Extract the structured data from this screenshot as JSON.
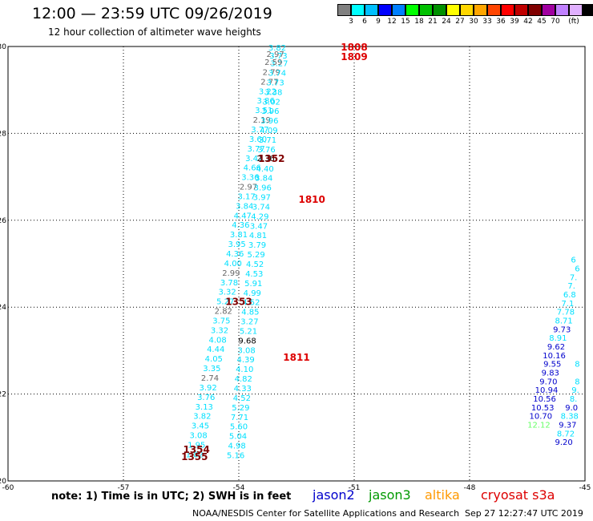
{
  "header": {
    "title": "12:00  —  23:59 UTC 09/26/2019",
    "subtitle": "12 hour collection of altimeter wave heights"
  },
  "colorbar": {
    "colors": [
      "#808080",
      "#00ffff",
      "#00bfff",
      "#0000ff",
      "#007fff",
      "#00ff00",
      "#00c000",
      "#009000",
      "#ffff00",
      "#ffd700",
      "#ffa500",
      "#ff4500",
      "#ff0000",
      "#c00000",
      "#800000",
      "#a000a0",
      "#c080ff",
      "#e0b0ff",
      "#000000"
    ],
    "labels": [
      "3",
      "6",
      "9",
      "12",
      "15",
      "18",
      "21",
      "24",
      "27",
      "30",
      "33",
      "36",
      "39",
      "42",
      "45",
      "70",
      "(ft)"
    ]
  },
  "chart_data": {
    "type": "scatter",
    "xlim": [
      -60,
      -45
    ],
    "ylim": [
      20,
      30
    ],
    "x_ticks": [
      "-60",
      "-57",
      "-54",
      "-51",
      "-48",
      "-45"
    ],
    "y_ticks": [
      "20",
      "22",
      "24",
      "26",
      "28",
      "30"
    ],
    "points": [
      {
        "lon": -53.0,
        "lat": 29.98,
        "t": "3.82",
        "c": "#00e0ff"
      },
      {
        "lon": -53.05,
        "lat": 29.83,
        "t": "2.97",
        "c": "#666666"
      },
      {
        "lon": -52.97,
        "lat": 29.8,
        "t": "3.73",
        "c": "#00e0ff"
      },
      {
        "lon": -52.95,
        "lat": 29.62,
        "t": "3.27",
        "c": "#00e0ff"
      },
      {
        "lon": -53.1,
        "lat": 29.65,
        "t": "2.59",
        "c": "#666666"
      },
      {
        "lon": -53.15,
        "lat": 29.42,
        "t": "2.79",
        "c": "#666666"
      },
      {
        "lon": -53.0,
        "lat": 29.4,
        "t": "3.74",
        "c": "#00e0ff"
      },
      {
        "lon": -53.2,
        "lat": 29.2,
        "t": "2.77",
        "c": "#666666"
      },
      {
        "lon": -53.05,
        "lat": 29.18,
        "t": "3.73",
        "c": "#00e0ff"
      },
      {
        "lon": -53.25,
        "lat": 28.98,
        "t": "3.22",
        "c": "#00e0ff"
      },
      {
        "lon": -53.1,
        "lat": 28.96,
        "t": "3.38",
        "c": "#00e0ff"
      },
      {
        "lon": -53.3,
        "lat": 28.76,
        "t": "3.86",
        "c": "#00e0ff"
      },
      {
        "lon": -53.15,
        "lat": 28.74,
        "t": "3.02",
        "c": "#00e0ff"
      },
      {
        "lon": -53.35,
        "lat": 28.54,
        "t": "3.51",
        "c": "#00e0ff"
      },
      {
        "lon": -53.18,
        "lat": 28.52,
        "t": "3.96",
        "c": "#00e0ff"
      },
      {
        "lon": -53.4,
        "lat": 28.32,
        "t": "2.19",
        "c": "#666666"
      },
      {
        "lon": -53.2,
        "lat": 28.3,
        "t": "3.96",
        "c": "#00e0ff"
      },
      {
        "lon": -53.45,
        "lat": 28.1,
        "t": "3.77",
        "c": "#00e0ff"
      },
      {
        "lon": -53.22,
        "lat": 28.08,
        "t": "4.09",
        "c": "#00e0ff"
      },
      {
        "lon": -53.5,
        "lat": 27.88,
        "t": "3.60",
        "c": "#00e0ff"
      },
      {
        "lon": -53.25,
        "lat": 27.86,
        "t": "3.71",
        "c": "#00e0ff"
      },
      {
        "lon": -53.55,
        "lat": 27.66,
        "t": "3.77",
        "c": "#00e0ff"
      },
      {
        "lon": -53.28,
        "lat": 27.64,
        "t": "3.76",
        "c": "#00e0ff"
      },
      {
        "lon": -53.6,
        "lat": 27.44,
        "t": "3.47",
        "c": "#00e0ff"
      },
      {
        "lon": -53.3,
        "lat": 27.44,
        "t": "2.36",
        "c": "#000000"
      },
      {
        "lon": -53.65,
        "lat": 27.22,
        "t": "4.66",
        "c": "#00e0ff"
      },
      {
        "lon": -53.32,
        "lat": 27.2,
        "t": "4.40",
        "c": "#00e0ff"
      },
      {
        "lon": -53.7,
        "lat": 27.0,
        "t": "3.36",
        "c": "#00e0ff"
      },
      {
        "lon": -53.35,
        "lat": 26.98,
        "t": "3.84",
        "c": "#00e0ff"
      },
      {
        "lon": -53.75,
        "lat": 26.78,
        "t": "2.97",
        "c": "#666666"
      },
      {
        "lon": -53.38,
        "lat": 26.76,
        "t": "3.96",
        "c": "#00e0ff"
      },
      {
        "lon": -53.8,
        "lat": 26.56,
        "t": "3.17",
        "c": "#00e0ff"
      },
      {
        "lon": -53.4,
        "lat": 26.54,
        "t": "3.97",
        "c": "#00e0ff"
      },
      {
        "lon": -53.85,
        "lat": 26.34,
        "t": "3.84",
        "c": "#00e0ff"
      },
      {
        "lon": -53.42,
        "lat": 26.32,
        "t": "3.74",
        "c": "#00e0ff"
      },
      {
        "lon": -53.9,
        "lat": 26.12,
        "t": "4.47",
        "c": "#00e0ff"
      },
      {
        "lon": -53.45,
        "lat": 26.1,
        "t": "4.29",
        "c": "#00e0ff"
      },
      {
        "lon": -53.95,
        "lat": 25.9,
        "t": "4.36",
        "c": "#00e0ff"
      },
      {
        "lon": -53.48,
        "lat": 25.88,
        "t": "3.47",
        "c": "#00e0ff"
      },
      {
        "lon": -54.0,
        "lat": 25.68,
        "t": "3.81",
        "c": "#00e0ff"
      },
      {
        "lon": -53.5,
        "lat": 25.66,
        "t": "4.81",
        "c": "#00e0ff"
      },
      {
        "lon": -54.05,
        "lat": 25.46,
        "t": "3.95",
        "c": "#00e0ff"
      },
      {
        "lon": -53.52,
        "lat": 25.44,
        "t": "3.79",
        "c": "#00e0ff"
      },
      {
        "lon": -54.1,
        "lat": 25.24,
        "t": "4.36",
        "c": "#00e0ff"
      },
      {
        "lon": -53.55,
        "lat": 25.22,
        "t": "5.29",
        "c": "#00e0ff"
      },
      {
        "lon": -54.15,
        "lat": 25.02,
        "t": "4.00",
        "c": "#00e0ff"
      },
      {
        "lon": -53.58,
        "lat": 25.0,
        "t": "4.52",
        "c": "#00e0ff"
      },
      {
        "lon": -54.2,
        "lat": 24.8,
        "t": "2.99",
        "c": "#666666"
      },
      {
        "lon": -53.6,
        "lat": 24.78,
        "t": "4.53",
        "c": "#00e0ff"
      },
      {
        "lon": -54.25,
        "lat": 24.58,
        "t": "3.78",
        "c": "#00e0ff"
      },
      {
        "lon": -53.62,
        "lat": 24.56,
        "t": "5.91",
        "c": "#00e0ff"
      },
      {
        "lon": -54.3,
        "lat": 24.36,
        "t": "3.32",
        "c": "#00e0ff"
      },
      {
        "lon": -53.65,
        "lat": 24.34,
        "t": "4.99",
        "c": "#00e0ff"
      },
      {
        "lon": -54.35,
        "lat": 24.14,
        "t": "5.27",
        "c": "#00e0ff"
      },
      {
        "lon": -53.68,
        "lat": 24.12,
        "t": "4.52",
        "c": "#00e0ff"
      },
      {
        "lon": -54.4,
        "lat": 23.92,
        "t": "2.82",
        "c": "#666666"
      },
      {
        "lon": -53.7,
        "lat": 23.9,
        "t": "4.85",
        "c": "#00e0ff"
      },
      {
        "lon": -54.45,
        "lat": 23.7,
        "t": "3.75",
        "c": "#00e0ff"
      },
      {
        "lon": -53.72,
        "lat": 23.68,
        "t": "3.27",
        "c": "#00e0ff"
      },
      {
        "lon": -54.5,
        "lat": 23.48,
        "t": "3.32",
        "c": "#00e0ff"
      },
      {
        "lon": -53.75,
        "lat": 23.46,
        "t": "5.21",
        "c": "#00e0ff"
      },
      {
        "lon": -53.78,
        "lat": 23.24,
        "t": "9.68",
        "c": "#000000"
      },
      {
        "lon": -54.55,
        "lat": 23.26,
        "t": "4.08",
        "c": "#00e0ff"
      },
      {
        "lon": -53.8,
        "lat": 23.02,
        "t": "3.08",
        "c": "#00e0ff"
      },
      {
        "lon": -54.6,
        "lat": 23.04,
        "t": "4.44",
        "c": "#00e0ff"
      },
      {
        "lon": -53.82,
        "lat": 22.8,
        "t": "4.39",
        "c": "#00e0ff"
      },
      {
        "lon": -54.65,
        "lat": 22.82,
        "t": "4.05",
        "c": "#00e0ff"
      },
      {
        "lon": -53.85,
        "lat": 22.58,
        "t": "4.10",
        "c": "#00e0ff"
      },
      {
        "lon": -54.7,
        "lat": 22.6,
        "t": "3.35",
        "c": "#00e0ff"
      },
      {
        "lon": -53.88,
        "lat": 22.36,
        "t": "4.82",
        "c": "#00e0ff"
      },
      {
        "lon": -54.75,
        "lat": 22.38,
        "t": "2.74",
        "c": "#666666"
      },
      {
        "lon": -53.9,
        "lat": 22.14,
        "t": "4.33",
        "c": "#00e0ff"
      },
      {
        "lon": -54.8,
        "lat": 22.16,
        "t": "3.92",
        "c": "#00e0ff"
      },
      {
        "lon": -53.92,
        "lat": 21.92,
        "t": "4.52",
        "c": "#00e0ff"
      },
      {
        "lon": -54.85,
        "lat": 21.94,
        "t": "3.76",
        "c": "#00e0ff"
      },
      {
        "lon": -53.95,
        "lat": 21.7,
        "t": "5.29",
        "c": "#00e0ff"
      },
      {
        "lon": -54.9,
        "lat": 21.72,
        "t": "3.13",
        "c": "#00e0ff"
      },
      {
        "lon": -53.98,
        "lat": 21.48,
        "t": "7.71",
        "c": "#00e0ff"
      },
      {
        "lon": -54.95,
        "lat": 21.5,
        "t": "3.82",
        "c": "#00e0ff"
      },
      {
        "lon": -54.0,
        "lat": 21.26,
        "t": "5.60",
        "c": "#00e0ff"
      },
      {
        "lon": -55.0,
        "lat": 21.28,
        "t": "3.45",
        "c": "#00e0ff"
      },
      {
        "lon": -54.02,
        "lat": 21.04,
        "t": "5.04",
        "c": "#00e0ff"
      },
      {
        "lon": -55.05,
        "lat": 21.06,
        "t": "3.08",
        "c": "#00e0ff"
      },
      {
        "lon": -54.05,
        "lat": 20.82,
        "t": "4.98",
        "c": "#00e0ff"
      },
      {
        "lon": -55.1,
        "lat": 20.84,
        "t": "1.95",
        "c": "#00e0ff"
      },
      {
        "lon": -54.08,
        "lat": 20.6,
        "t": "5.16",
        "c": "#00e0ff"
      },
      {
        "lon": -55.15,
        "lat": 20.62,
        "t": "1.82",
        "c": "#00e0ff"
      },
      {
        "lon": -45.3,
        "lat": 25.1,
        "t": "6",
        "c": "#00e0ff"
      },
      {
        "lon": -45.2,
        "lat": 24.9,
        "t": "6",
        "c": "#00e0ff"
      },
      {
        "lon": -45.3,
        "lat": 24.7,
        "t": "7.",
        "c": "#00e0ff"
      },
      {
        "lon": -45.35,
        "lat": 24.5,
        "t": "7.",
        "c": "#00e0ff"
      },
      {
        "lon": -45.4,
        "lat": 24.3,
        "t": "6.8",
        "c": "#00e0ff"
      },
      {
        "lon": -45.45,
        "lat": 24.1,
        "t": "7.1",
        "c": "#00e0ff"
      },
      {
        "lon": -45.5,
        "lat": 23.9,
        "t": "7.78",
        "c": "#00e0ff"
      },
      {
        "lon": -45.55,
        "lat": 23.7,
        "t": "8.71",
        "c": "#00e0ff"
      },
      {
        "lon": -45.6,
        "lat": 23.5,
        "t": "9.73",
        "c": "#0000cc"
      },
      {
        "lon": -45.7,
        "lat": 23.3,
        "t": "8.91",
        "c": "#00e0ff"
      },
      {
        "lon": -45.75,
        "lat": 23.1,
        "t": "9.62",
        "c": "#0000cc"
      },
      {
        "lon": -45.8,
        "lat": 22.9,
        "t": "10.16",
        "c": "#0000cc"
      },
      {
        "lon": -45.85,
        "lat": 22.7,
        "t": "9.55",
        "c": "#0000cc"
      },
      {
        "lon": -45.2,
        "lat": 22.7,
        "t": "8",
        "c": "#00e0ff"
      },
      {
        "lon": -45.9,
        "lat": 22.5,
        "t": "9.83",
        "c": "#0000cc"
      },
      {
        "lon": -45.95,
        "lat": 22.3,
        "t": "9.70",
        "c": "#0000cc"
      },
      {
        "lon": -45.2,
        "lat": 22.3,
        "t": "8",
        "c": "#00e0ff"
      },
      {
        "lon": -46.0,
        "lat": 22.1,
        "t": "10.94",
        "c": "#0000cc"
      },
      {
        "lon": -45.25,
        "lat": 22.1,
        "t": "9.",
        "c": "#00e0ff"
      },
      {
        "lon": -46.05,
        "lat": 21.9,
        "t": "10.56",
        "c": "#0000cc"
      },
      {
        "lon": -45.3,
        "lat": 21.9,
        "t": "8.",
        "c": "#00e0ff"
      },
      {
        "lon": -45.35,
        "lat": 21.7,
        "t": "9.0",
        "c": "#0000cc"
      },
      {
        "lon": -46.1,
        "lat": 21.7,
        "t": "10.53",
        "c": "#0000cc"
      },
      {
        "lon": -45.4,
        "lat": 21.5,
        "t": "8.38",
        "c": "#00e0ff"
      },
      {
        "lon": -46.15,
        "lat": 21.5,
        "t": "10.70",
        "c": "#0000cc"
      },
      {
        "lon": -45.45,
        "lat": 21.3,
        "t": "9.37",
        "c": "#0000cc"
      },
      {
        "lon": -46.2,
        "lat": 21.3,
        "t": "12.12",
        "c": "#66ff66"
      },
      {
        "lon": -45.5,
        "lat": 21.1,
        "t": "8.72",
        "c": "#00e0ff"
      },
      {
        "lon": -45.55,
        "lat": 20.9,
        "t": "9.20",
        "c": "#0000cc"
      }
    ],
    "pass_labels": [
      {
        "lon": -51.0,
        "lat": 29.98,
        "t": "1808",
        "c": "#dd0000"
      },
      {
        "lon": -51.0,
        "lat": 29.76,
        "t": "1809",
        "c": "#dd0000"
      },
      {
        "lon": -53.15,
        "lat": 27.42,
        "t": "1352",
        "c": "#800000"
      },
      {
        "lon": -52.1,
        "lat": 26.48,
        "t": "1810",
        "c": "#dd0000"
      },
      {
        "lon": -54.0,
        "lat": 24.12,
        "t": "1353",
        "c": "#800000"
      },
      {
        "lon": -52.5,
        "lat": 22.84,
        "t": "1811",
        "c": "#dd0000"
      },
      {
        "lon": -55.1,
        "lat": 20.72,
        "t": "1354",
        "c": "#800000"
      },
      {
        "lon": -55.15,
        "lat": 20.55,
        "t": "1355",
        "c": "#800000"
      }
    ]
  },
  "note": "note: 1) Time is in UTC; 2) SWH is in feet",
  "legend": [
    {
      "label": "jason2",
      "color": "#0000cc"
    },
    {
      "label": "jason3",
      "color": "#009900"
    },
    {
      "label": "altika",
      "color": "#ff9900"
    },
    {
      "label": "cryosat s3a",
      "color": "#dd0000"
    }
  ],
  "footer": {
    "org": "NOAA/NESDIS Center for Satellite Applications and Research",
    "stamp": "Sep 27 12:27:47 UTC 2019"
  }
}
